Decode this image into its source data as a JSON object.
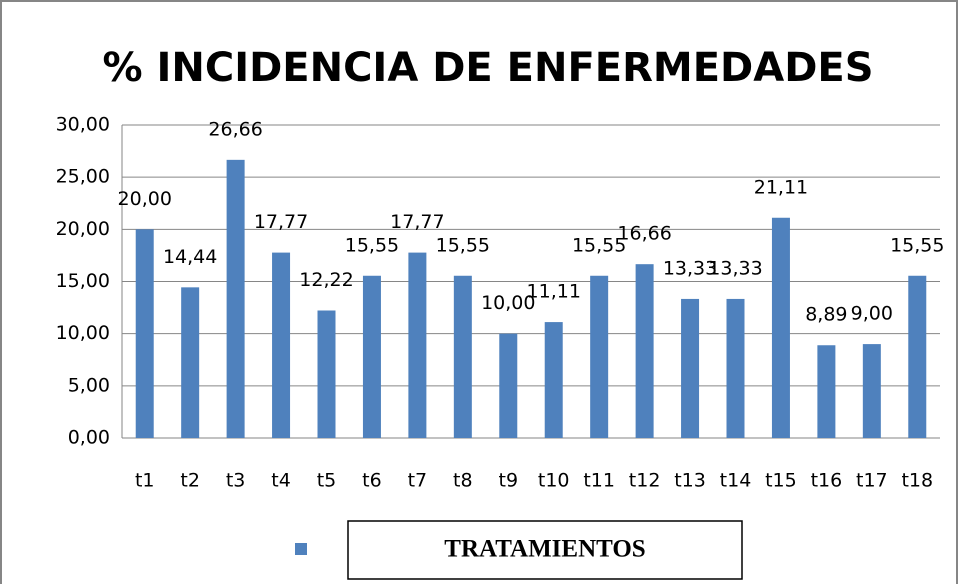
{
  "chart_data": {
    "type": "bar",
    "title": "% INCIDENCIA DE ENFERMEDADES",
    "categories": [
      "t1",
      "t2",
      "t3",
      "t4",
      "t5",
      "t6",
      "t7",
      "t8",
      "t9",
      "t10",
      "t11",
      "t12",
      "t13",
      "t14",
      "t15",
      "t16",
      "t17",
      "t18"
    ],
    "series": [
      {
        "name": "TRATAMIENTOS",
        "color": "#4f81bd",
        "values": [
          20,
          14.44,
          26.66,
          17.77,
          12.22,
          15.55,
          17.77,
          15.55,
          10,
          11.11,
          15.55,
          16.66,
          13.33,
          13.33,
          21.11,
          8.89,
          9,
          15.55
        ],
        "value_labels": [
          "20,00",
          "14,44",
          "26,66",
          "17,77",
          "12,22",
          "15,55",
          "17,77",
          "15,55",
          "10,00",
          "11,11",
          "15,55",
          "16,66",
          "13,33",
          "13,33",
          "21,11",
          "8,89",
          "9,00",
          "15,55"
        ]
      }
    ],
    "ylim": [
      0,
      30
    ],
    "yticks": [
      {
        "value": 0,
        "label": "0,00"
      },
      {
        "value": 5,
        "label": "5,00"
      },
      {
        "value": 10,
        "label": "10,00"
      },
      {
        "value": 15,
        "label": "15,00"
      },
      {
        "value": 20,
        "label": "20,00"
      },
      {
        "value": 25,
        "label": "25,00"
      },
      {
        "value": 30,
        "label": "30,00"
      }
    ],
    "grid": true
  }
}
